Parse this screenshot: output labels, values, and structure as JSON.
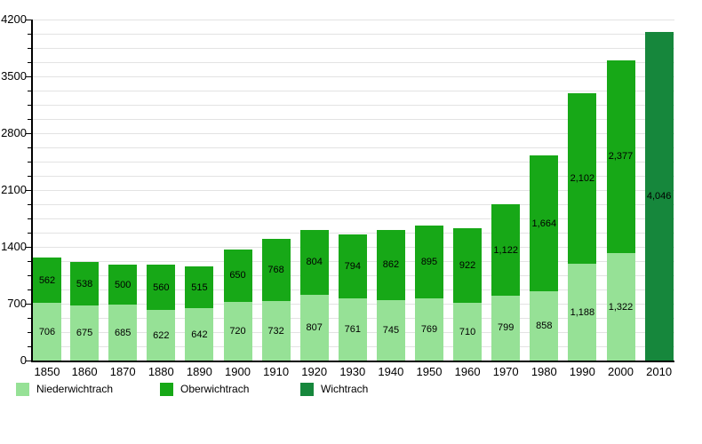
{
  "chart_data": {
    "type": "bar",
    "stacked": true,
    "title": "",
    "xlabel": "",
    "ylabel": "",
    "categories": [
      "1850",
      "1860",
      "1870",
      "1880",
      "1890",
      "1900",
      "1910",
      "1920",
      "1930",
      "1940",
      "1950",
      "1960",
      "1970",
      "1980",
      "1990",
      "2000",
      "2010"
    ],
    "series": [
      {
        "name": "Niederwichtrach",
        "color": "#96e196",
        "values": [
          706,
          675,
          685,
          622,
          642,
          720,
          732,
          807,
          761,
          745,
          769,
          710,
          799,
          858,
          1188,
          1322,
          null
        ]
      },
      {
        "name": "Oberwichtrach",
        "color": "#17a817",
        "values": [
          562,
          538,
          500,
          560,
          515,
          650,
          768,
          804,
          794,
          862,
          895,
          922,
          1122,
          1664,
          2102,
          2377,
          null
        ]
      },
      {
        "name": "Wichtrach",
        "color": "#16873c",
        "values": [
          null,
          null,
          null,
          null,
          null,
          null,
          null,
          null,
          null,
          null,
          null,
          null,
          null,
          null,
          null,
          null,
          4046
        ]
      }
    ],
    "ylim": [
      0,
      4200
    ],
    "yticks": [
      0,
      700,
      1400,
      2100,
      2800,
      3500,
      4200
    ],
    "ytick_step": 700,
    "yminor_step": 175,
    "grid": true,
    "legend_position": "bottom",
    "axis_color": "#000000",
    "gridline_color": "#e3e3e3",
    "background_color": "#ffffff"
  }
}
